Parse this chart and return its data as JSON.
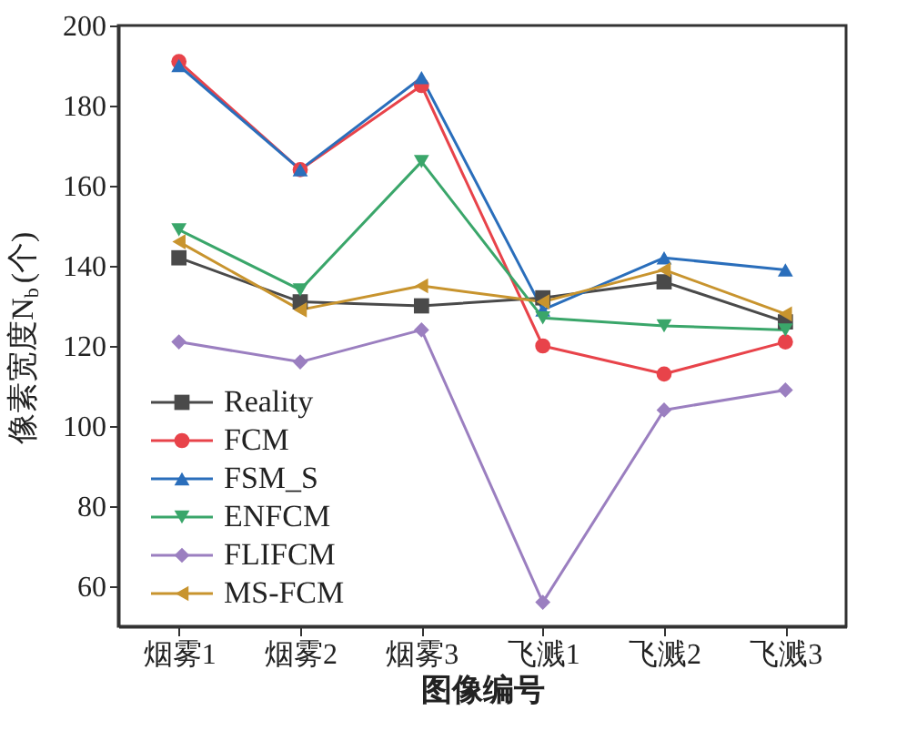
{
  "chart_data": {
    "type": "line",
    "xlabel": "图像编号",
    "ylabel": "像素宽度N$_{b}$(个)",
    "categories": [
      "烟雾1",
      "烟雾2",
      "烟雾3",
      "飞溅1",
      "飞溅2",
      "飞溅3"
    ],
    "series": [
      {
        "name": "Reality",
        "color": "#4a4a4a",
        "marker": "square",
        "values": [
          142,
          131,
          130,
          132,
          136,
          126
        ]
      },
      {
        "name": "FCM",
        "color": "#e8434a",
        "marker": "circle",
        "values": [
          191,
          164,
          185,
          120,
          113,
          121
        ]
      },
      {
        "name": "FSM_S",
        "color": "#2a6ebb",
        "marker": "triangle",
        "values": [
          190,
          164,
          187,
          129,
          142,
          139
        ]
      },
      {
        "name": "ENFCM",
        "color": "#3aa66a",
        "marker": "triangle-down",
        "values": [
          149,
          134,
          166,
          127,
          125,
          124
        ]
      },
      {
        "name": "FLIFCM",
        "color": "#9b7fc0",
        "marker": "diamond",
        "values": [
          121,
          116,
          124,
          56,
          104,
          109
        ]
      },
      {
        "name": "MS-FCM",
        "color": "#c8942e",
        "marker": "triangle-left",
        "values": [
          146,
          129,
          135,
          131,
          139,
          128
        ]
      }
    ],
    "ylim": [
      50,
      200
    ],
    "yticks": [
      60,
      80,
      100,
      120,
      140,
      160,
      180,
      200
    ],
    "grid": false,
    "legend": "bottom left",
    "line_style": "solid"
  }
}
